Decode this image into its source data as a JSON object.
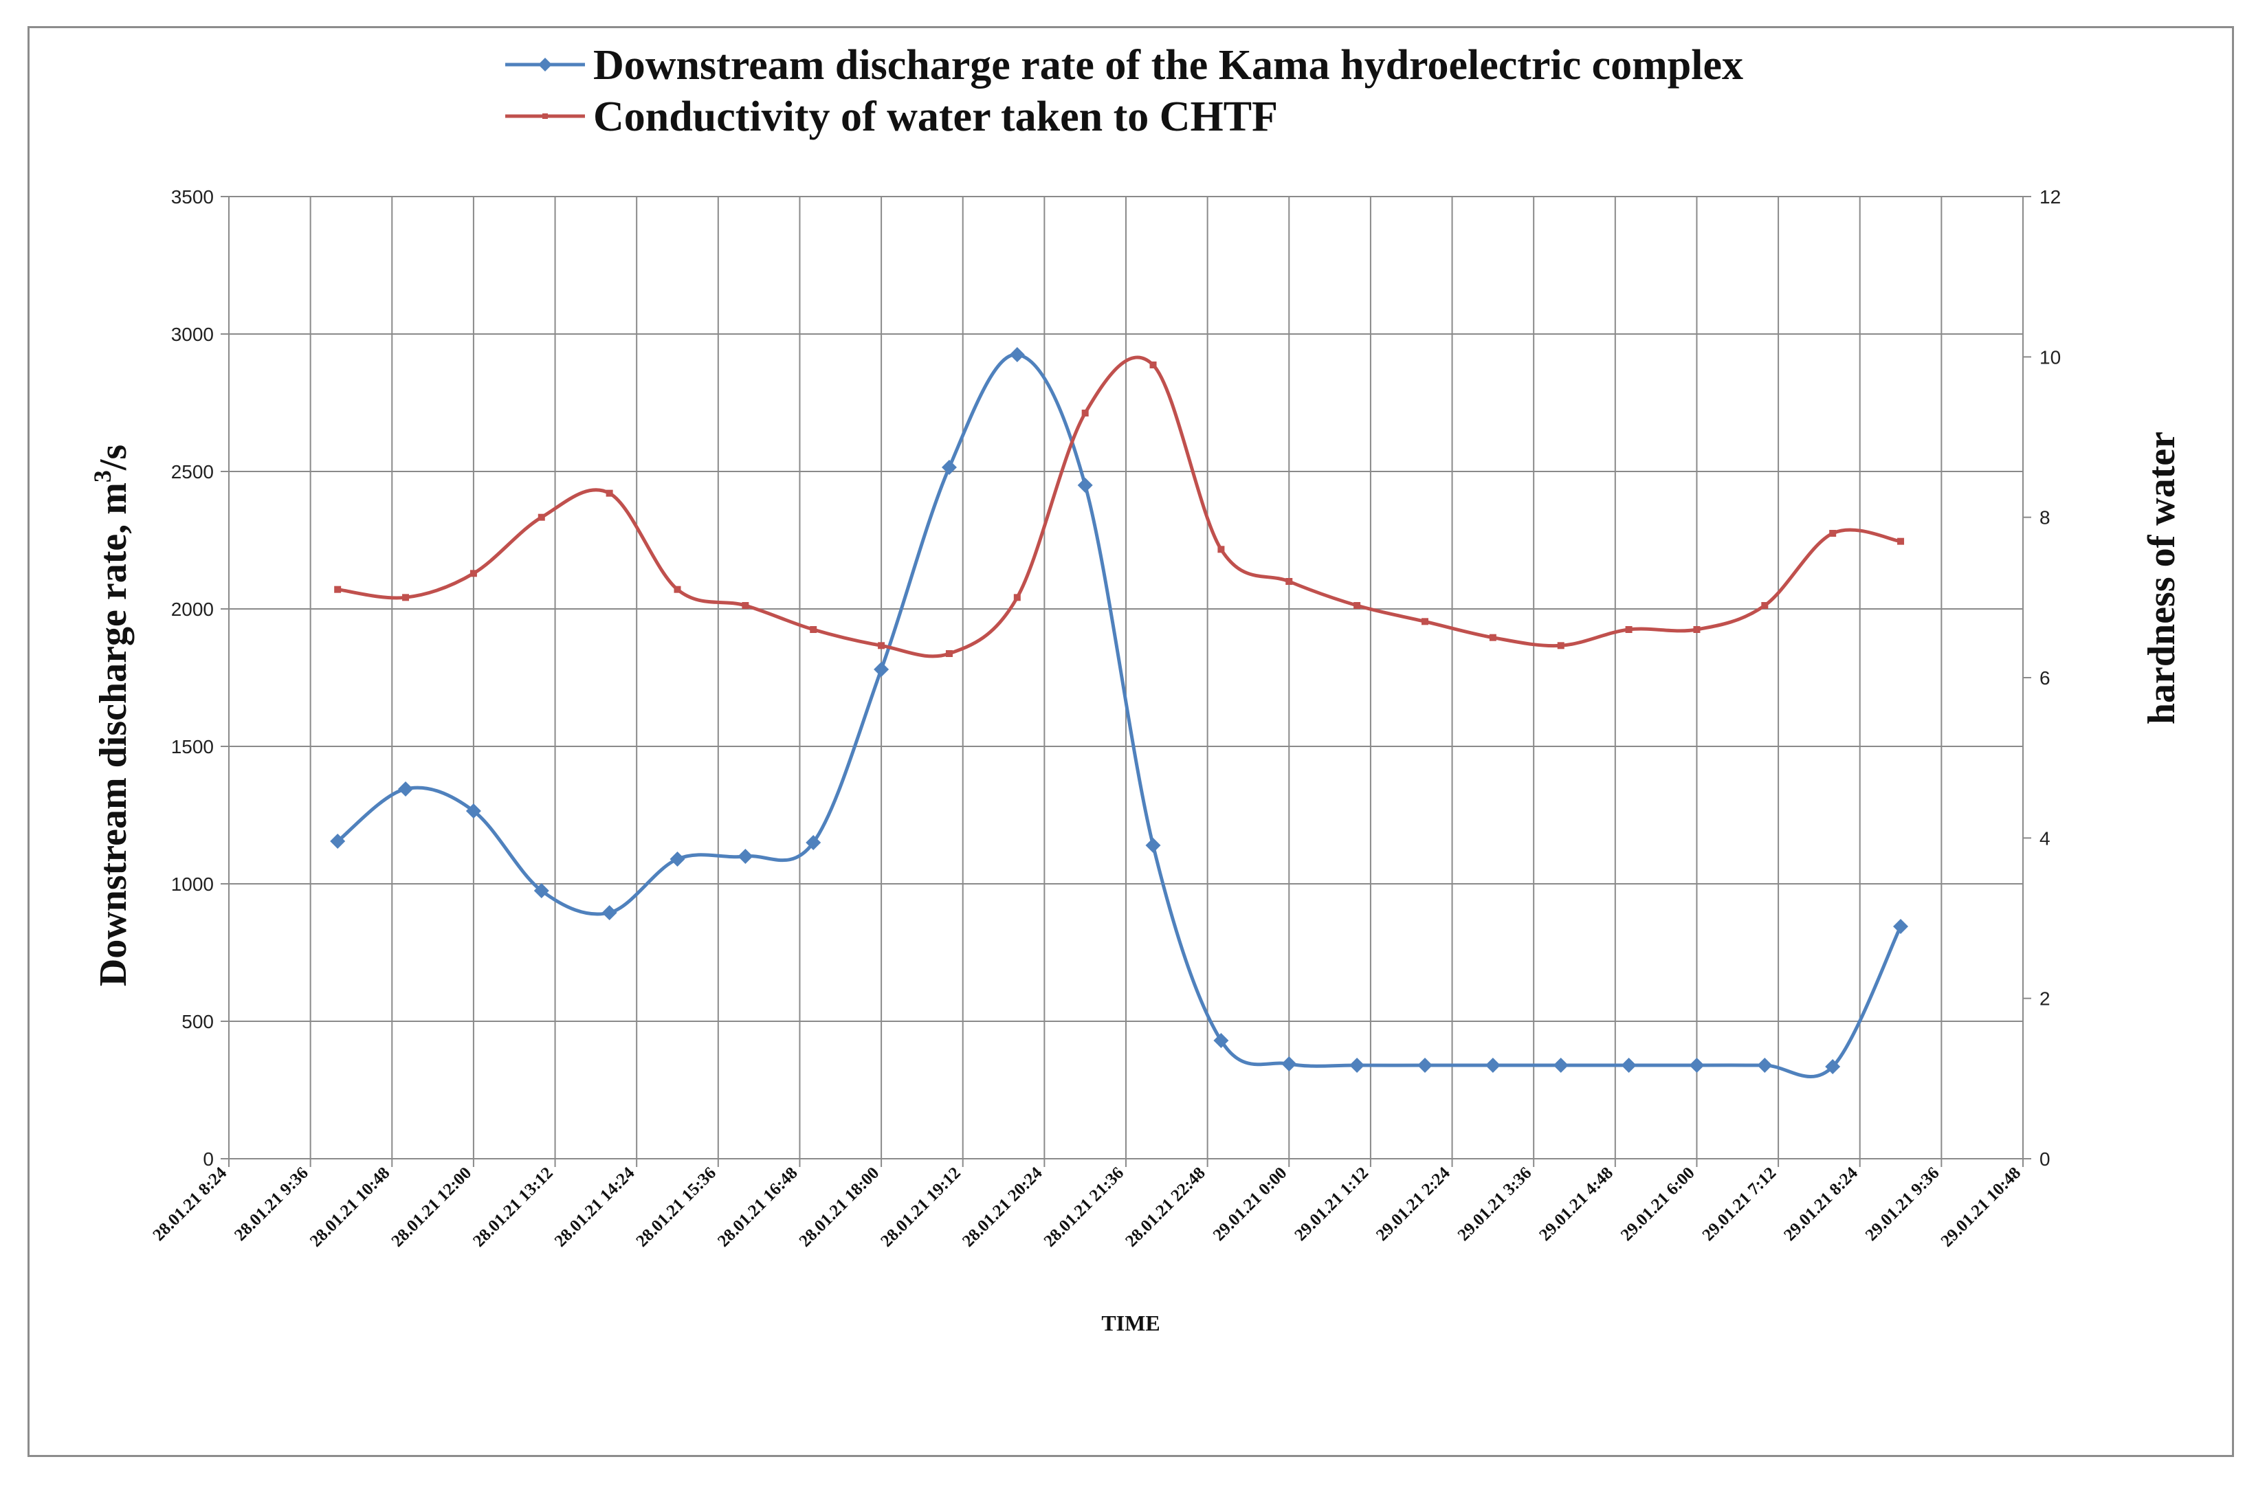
{
  "chart_data": {
    "type": "line",
    "title": "",
    "xlabel": "TIME",
    "ylabel_left": "Downstream discharge rate, m",
    "ylabel_left_sup": "3",
    "ylabel_left_suffix": "/s",
    "ylabel_right": "hardness of water",
    "ylim_left": [
      0,
      3500
    ],
    "ylim_right": [
      0,
      12
    ],
    "yticks_left": [
      0,
      500,
      1000,
      1500,
      2000,
      2500,
      3000,
      3500
    ],
    "yticks_right": [
      0,
      2,
      4,
      6,
      8,
      10,
      12
    ],
    "x_tick_labels": [
      "28.01.21 8:24",
      "28.01.21 9:36",
      "28.01.21 10:48",
      "28.01.21 12:00",
      "28.01.21 13:12",
      "28.01.21 14:24",
      "28.01.21 15:36",
      "28.01.21 16:48",
      "28.01.21 18:00",
      "28.01.21 19:12",
      "28.01.21 20:24",
      "28.01.21 21:36",
      "28.01.21 22:48",
      "29.01.21 0:00",
      "29.01.21 1:12",
      "29.01.21 2:24",
      "29.01.21 3:36",
      "29.01.21 4:48",
      "29.01.21 6:00",
      "29.01.21 7:12",
      "29.01.21 8:24",
      "29.01.21 9:36",
      "29.01.21 10:48"
    ],
    "x_range_hours": [
      8.4,
      34.8
    ],
    "grid": true,
    "legend_position": "top-center",
    "series": [
      {
        "name": "Downstream discharge rate of the Kama hydroelectric complex",
        "axis": "left",
        "color": "#4f81bd",
        "marker": "diamond",
        "x_hours": [
          10,
          11,
          12,
          13,
          14,
          15,
          16,
          17,
          18,
          19,
          20,
          21,
          22,
          23,
          24,
          25,
          26,
          27,
          28,
          29,
          30,
          31,
          32,
          33
        ],
        "values": [
          1155,
          1345,
          1265,
          975,
          895,
          1090,
          1100,
          1150,
          1780,
          2515,
          2925,
          2450,
          1140,
          430,
          345,
          340,
          340,
          340,
          340,
          340,
          340,
          340,
          335,
          845
        ]
      },
      {
        "name": "Conductivity  of water taken to CHTF",
        "axis": "right",
        "color": "#c0504d",
        "marker": "square",
        "x_hours": [
          10,
          11,
          12,
          13,
          14,
          15,
          16,
          17,
          18,
          19,
          20,
          21,
          22,
          23,
          24,
          25,
          26,
          27,
          28,
          29,
          30,
          31,
          32,
          33
        ],
        "values": [
          7.1,
          7.0,
          7.3,
          8.0,
          8.3,
          7.1,
          6.9,
          6.6,
          6.4,
          6.3,
          7.0,
          9.3,
          9.9,
          7.6,
          7.2,
          6.9,
          6.7,
          6.5,
          6.4,
          6.6,
          6.6,
          6.9,
          7.8,
          7.7
        ]
      }
    ]
  }
}
